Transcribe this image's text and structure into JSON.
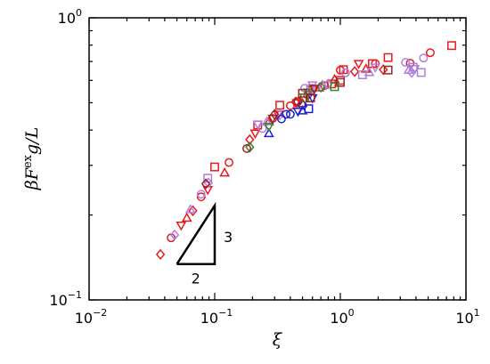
{
  "chart_data": {
    "type": "scatter",
    "title": "",
    "xlabel": "ξ",
    "ylabel": "βF^ex g/L",
    "xscale": "log",
    "yscale": "log",
    "xlim": [
      0.01,
      10
    ],
    "ylim": [
      0.1,
      1
    ],
    "grid": false,
    "legend": "none",
    "x_tick_labels": [
      {
        "value": 0.01,
        "base": "10",
        "exp": "−2"
      },
      {
        "value": 0.1,
        "base": "10",
        "exp": "−1"
      },
      {
        "value": 1,
        "base": "10",
        "exp": "0"
      },
      {
        "value": 10,
        "base": "10",
        "exp": "1"
      }
    ],
    "y_tick_labels": [
      {
        "value": 0.1,
        "base": "10",
        "exp": "−1"
      },
      {
        "value": 1,
        "base": "10",
        "exp": "0"
      }
    ],
    "slope_triangle": {
      "corner": [
        0.05,
        0.134
      ],
      "x_end": 0.1,
      "y_end": 0.216,
      "run_label": "2",
      "rise_label": "3"
    },
    "series": [
      {
        "marker": "square",
        "color": "#e8191b",
        "points": [
          [
            0.1,
            0.296
          ],
          [
            0.22,
            0.417
          ],
          [
            0.33,
            0.49
          ],
          [
            0.5,
            0.52
          ],
          [
            0.85,
            0.583
          ],
          [
            1.0,
            0.6
          ],
          [
            1.8,
            0.688
          ],
          [
            2.4,
            0.723
          ],
          [
            7.7,
            0.797
          ],
          [
            1.06,
            0.655
          ]
        ]
      },
      {
        "marker": "circle",
        "color": "#e8191b",
        "points": [
          [
            0.045,
            0.166
          ],
          [
            0.078,
            0.232
          ],
          [
            0.13,
            0.307
          ],
          [
            0.29,
            0.44
          ],
          [
            0.4,
            0.488
          ],
          [
            0.55,
            0.533
          ],
          [
            1.0,
            0.652
          ],
          [
            1.9,
            0.688
          ],
          [
            3.6,
            0.69
          ],
          [
            5.2,
            0.752
          ],
          [
            0.6,
            0.562
          ],
          [
            0.75,
            0.575
          ]
        ]
      },
      {
        "marker": "diamond",
        "color": "#e8191b",
        "points": [
          [
            0.037,
            0.145
          ],
          [
            0.067,
            0.207
          ],
          [
            0.19,
            0.37
          ],
          [
            0.44,
            0.503
          ],
          [
            1.3,
            0.645
          ],
          [
            2.2,
            0.655
          ]
        ]
      },
      {
        "marker": "triangle-up",
        "color": "#e8191b",
        "points": [
          [
            0.06,
            0.195
          ],
          [
            0.12,
            0.282
          ],
          [
            0.27,
            0.428
          ],
          [
            0.5,
            0.497
          ],
          [
            0.68,
            0.565
          ],
          [
            1.6,
            0.658
          ],
          [
            0.9,
            0.605
          ]
        ]
      },
      {
        "marker": "triangle-down",
        "color": "#e8191b",
        "points": [
          [
            0.054,
            0.184
          ],
          [
            0.088,
            0.246
          ],
          [
            0.21,
            0.39
          ],
          [
            0.45,
            0.5
          ],
          [
            1.4,
            0.688
          ],
          [
            0.32,
            0.455
          ],
          [
            0.62,
            0.558
          ]
        ]
      },
      {
        "marker": "square",
        "color": "#b07ee0",
        "points": [
          [
            0.088,
            0.27
          ],
          [
            0.58,
            0.56
          ],
          [
            1.5,
            0.628
          ],
          [
            3.8,
            0.668
          ],
          [
            4.4,
            0.64
          ]
        ]
      },
      {
        "marker": "circle",
        "color": "#b07ee0",
        "points": [
          [
            0.078,
            0.237
          ],
          [
            0.24,
            0.405
          ],
          [
            0.52,
            0.563
          ],
          [
            1.1,
            0.638
          ],
          [
            3.3,
            0.695
          ],
          [
            4.6,
            0.72
          ]
        ]
      },
      {
        "marker": "triangle-up",
        "color": "#b07ee0",
        "points": [
          [
            0.064,
            0.209
          ],
          [
            0.26,
            0.428
          ],
          [
            0.72,
            0.578
          ],
          [
            1.7,
            0.64
          ],
          [
            3.5,
            0.652
          ]
        ]
      },
      {
        "marker": "triangle-down",
        "color": "#b07ee0",
        "points": [
          [
            0.22,
            0.42
          ],
          [
            0.6,
            0.578
          ],
          [
            1.9,
            0.668
          ],
          [
            3.9,
            0.66
          ]
        ]
      },
      {
        "marker": "diamond",
        "color": "#b07ee0",
        "points": [
          [
            0.048,
            0.17
          ],
          [
            0.089,
            0.26
          ],
          [
            0.33,
            0.453
          ],
          [
            0.8,
            0.582
          ],
          [
            3.7,
            0.64
          ]
        ]
      },
      {
        "marker": "circle",
        "color": "#1a21d6",
        "points": [
          [
            0.34,
            0.438
          ],
          [
            0.37,
            0.455
          ],
          [
            0.4,
            0.455
          ],
          [
            0.5,
            0.49
          ]
        ]
      },
      {
        "marker": "square",
        "color": "#1a21d6",
        "points": [
          [
            0.56,
            0.476
          ]
        ]
      },
      {
        "marker": "triangle-up",
        "color": "#1a21d6",
        "points": [
          [
            0.27,
            0.389
          ],
          [
            0.5,
            0.468
          ]
        ]
      },
      {
        "marker": "triangle-down",
        "color": "#1a21d6",
        "points": [
          [
            0.46,
            0.466
          ],
          [
            0.6,
            0.52
          ]
        ]
      },
      {
        "marker": "square",
        "color": "#2c8a2c",
        "points": [
          [
            0.52,
            0.52
          ],
          [
            0.9,
            0.57
          ]
        ]
      },
      {
        "marker": "diamond",
        "color": "#2c8a2c",
        "points": [
          [
            0.19,
            0.348
          ],
          [
            0.7,
            0.568
          ]
        ]
      },
      {
        "marker": "triangle-down",
        "color": "#2c8a2c",
        "points": [
          [
            0.27,
            0.412
          ],
          [
            0.55,
            0.545
          ]
        ]
      },
      {
        "marker": "square",
        "color": "#9b2523",
        "points": [
          [
            0.5,
            0.54
          ],
          [
            0.58,
            0.52
          ],
          [
            1.0,
            0.59
          ],
          [
            2.4,
            0.653
          ]
        ]
      },
      {
        "marker": "circle",
        "color": "#9b2523",
        "points": [
          [
            0.18,
            0.344
          ],
          [
            0.46,
            0.505
          ]
        ]
      },
      {
        "marker": "diamond",
        "color": "#9b2523",
        "points": [
          [
            0.085,
            0.258
          ],
          [
            0.3,
            0.455
          ]
        ]
      },
      {
        "marker": "triangle-down",
        "color": "#9b2523",
        "points": [
          [
            0.29,
            0.44
          ],
          [
            0.62,
            0.562
          ]
        ]
      }
    ]
  }
}
